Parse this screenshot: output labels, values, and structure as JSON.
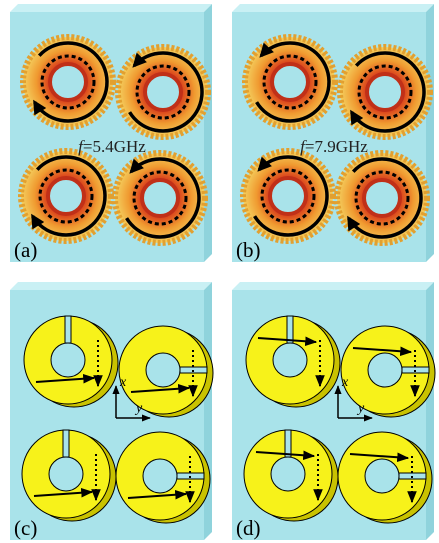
{
  "panels": [
    {
      "label": "(a)",
      "frequency": {
        "symbol": "f",
        "value": "=5.4GHz"
      }
    },
    {
      "label": "(b)",
      "frequency": {
        "symbol": "f",
        "value": "=7.9GHz"
      }
    },
    {
      "label": "(c)",
      "axes": {
        "x": "x",
        "y": "y"
      }
    },
    {
      "label": "(d)",
      "axes": {
        "x": "x",
        "y": "y"
      }
    }
  ]
}
